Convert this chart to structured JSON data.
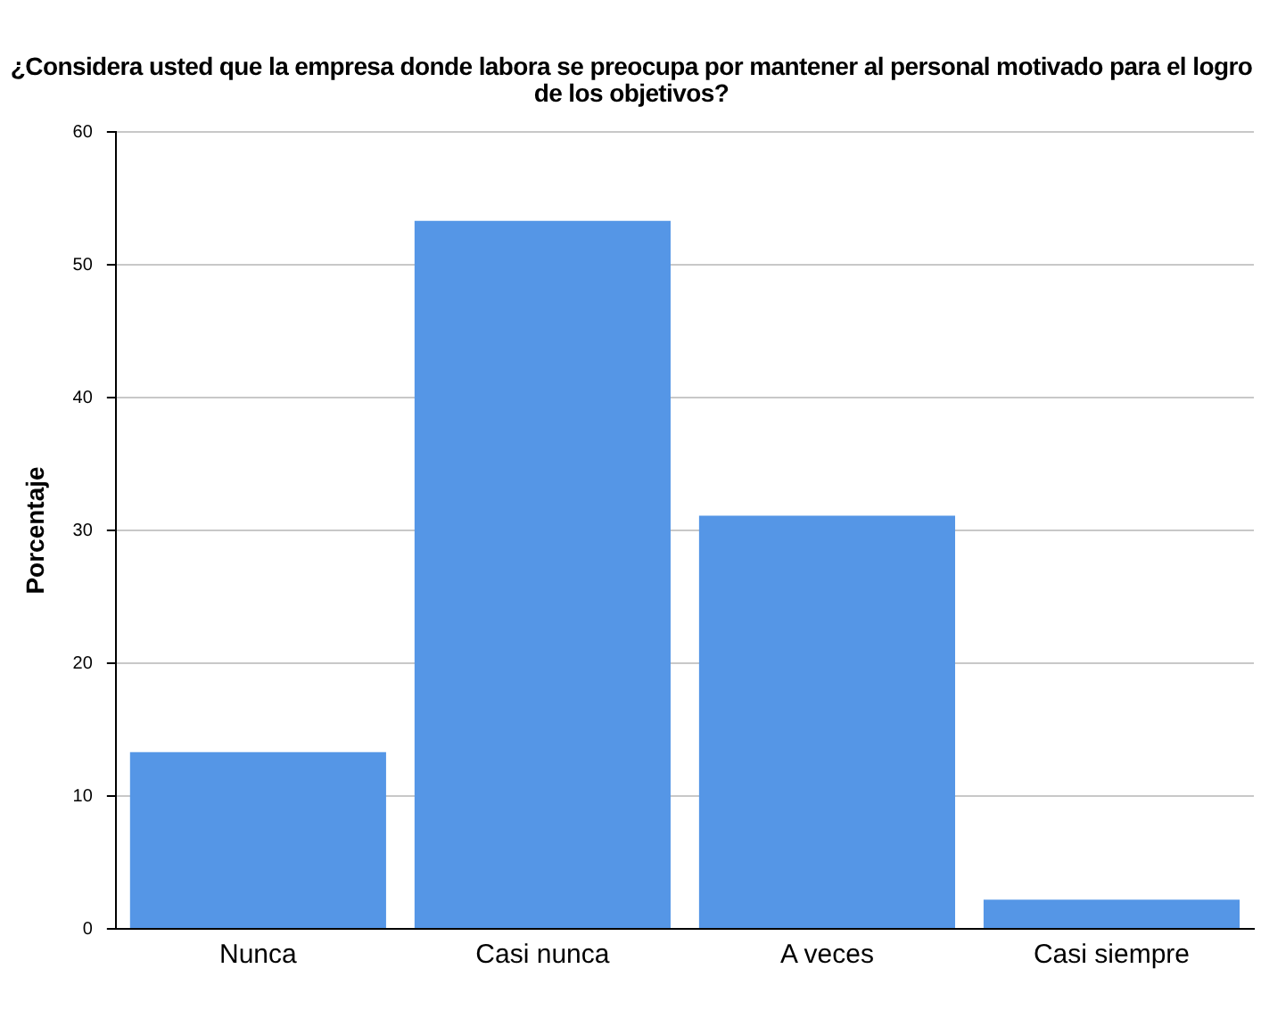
{
  "chart_data": {
    "type": "bar",
    "title": "¿Considera usted que la empresa donde labora se preocupa por mantener al personal motivado para el logro de los objetivos?",
    "ylabel": "Porcentaje",
    "categories": [
      "Nunca",
      "Casi nunca",
      "A veces",
      "Casi siempre"
    ],
    "values": [
      13.3,
      53.3,
      31.1,
      2.2
    ],
    "color": "#5596e6",
    "ylim": [
      0,
      60
    ],
    "yticks": [
      0,
      10,
      20,
      30,
      40,
      50,
      60
    ],
    "grid": "y",
    "legend": false
  }
}
